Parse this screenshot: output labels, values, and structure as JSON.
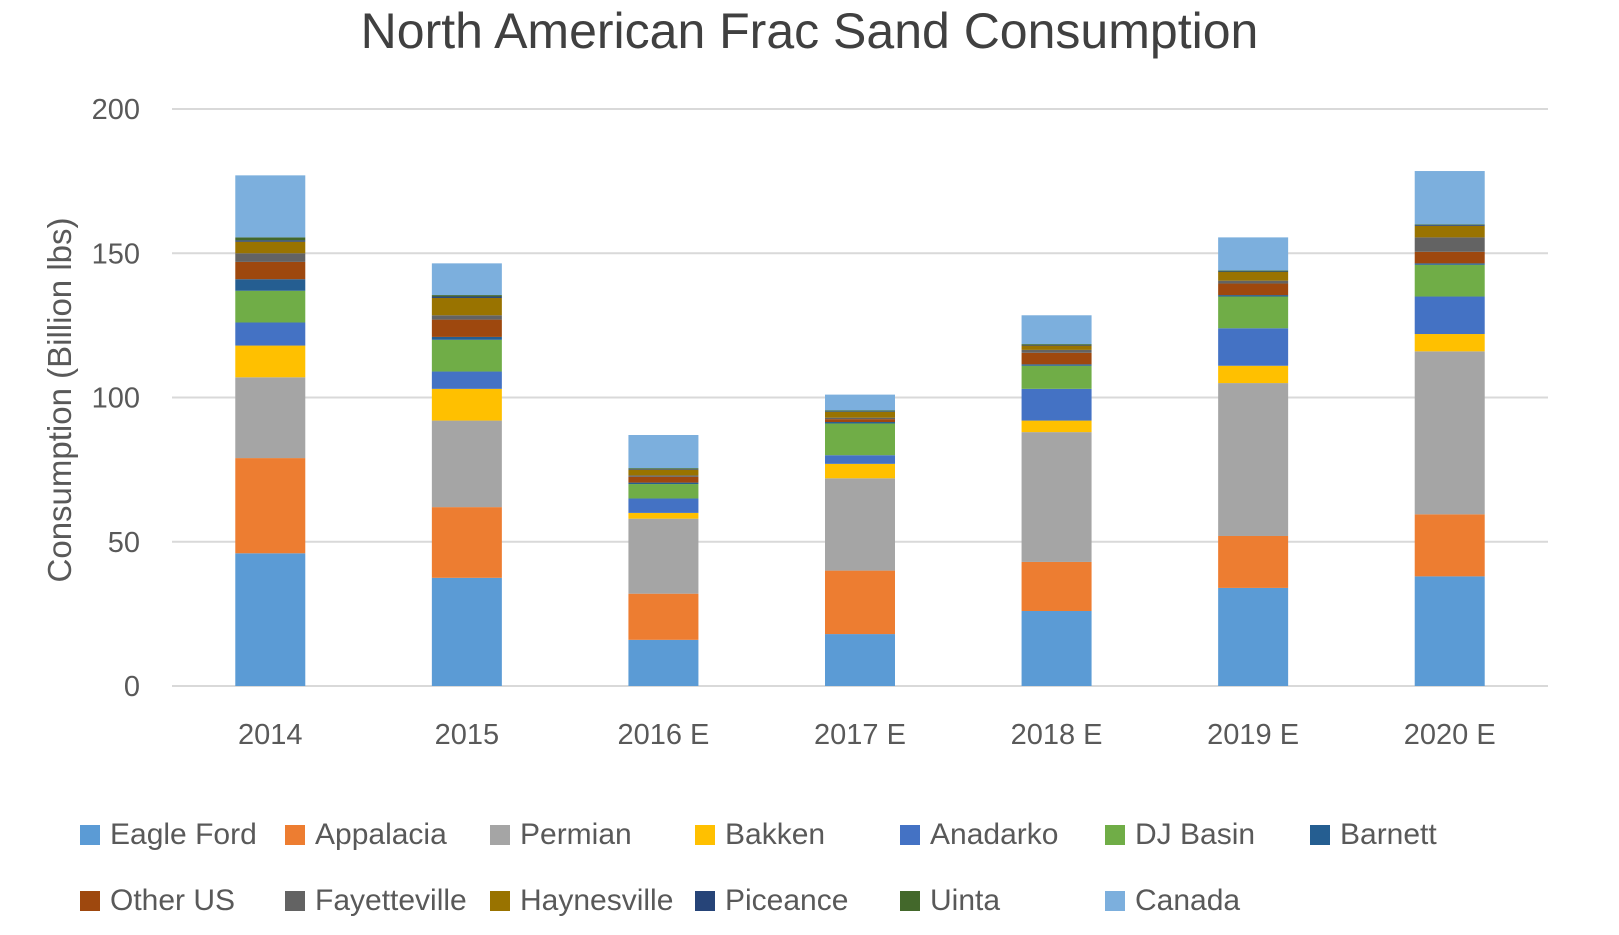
{
  "chart_data": {
    "type": "bar",
    "stacked": true,
    "title": "North American Frac Sand Consumption",
    "xlabel": "",
    "ylabel": "Consumption (Billion lbs)",
    "ylim": [
      0,
      200
    ],
    "yticks": [
      0,
      50,
      100,
      150,
      200
    ],
    "grid": true,
    "legend_position": "bottom",
    "categories": [
      "2014",
      "2015",
      "2016 E",
      "2017 E",
      "2018 E",
      "2019 E",
      "2020 E"
    ],
    "series": [
      {
        "name": "Eagle Ford",
        "color": "#5B9BD5",
        "values": [
          46,
          37.5,
          16,
          18,
          26,
          34,
          38
        ]
      },
      {
        "name": "Appalacia",
        "color": "#ED7D31",
        "values": [
          33,
          24.5,
          16,
          22,
          17,
          18,
          21.5
        ]
      },
      {
        "name": "Permian",
        "color": "#A5A5A5",
        "values": [
          28,
          30,
          26,
          32,
          45,
          53,
          56.5
        ]
      },
      {
        "name": "Bakken",
        "color": "#FFC000",
        "values": [
          11,
          11,
          2,
          5,
          4,
          6,
          6
        ]
      },
      {
        "name": "Anadarko",
        "color": "#4472C4",
        "values": [
          8,
          6,
          5,
          3,
          11,
          13,
          13
        ]
      },
      {
        "name": "DJ Basin",
        "color": "#70AD47",
        "values": [
          11,
          11,
          5,
          11,
          8,
          11,
          11
        ]
      },
      {
        "name": "Barnett",
        "color": "#255E91",
        "values": [
          4,
          1,
          0.5,
          0.5,
          0.5,
          0.5,
          0.5
        ]
      },
      {
        "name": "Other US",
        "color": "#9E480E",
        "values": [
          6,
          6,
          2,
          1,
          4,
          4,
          4
        ]
      },
      {
        "name": "Fayetteville",
        "color": "#636363",
        "values": [
          3,
          1.5,
          0.5,
          0.5,
          1,
          1,
          5
        ]
      },
      {
        "name": "Haynesville",
        "color": "#997300",
        "values": [
          4,
          6,
          2,
          2,
          1.5,
          3,
          4
        ]
      },
      {
        "name": "Piceance",
        "color": "#264478",
        "values": [
          0.5,
          0.5,
          0.2,
          0.2,
          0.2,
          0.2,
          0.3
        ]
      },
      {
        "name": "Uinta",
        "color": "#43682B",
        "values": [
          1,
          0.5,
          0.3,
          0.3,
          0.3,
          0.3,
          0.2
        ]
      },
      {
        "name": "Canada",
        "color": "#7CAFDD",
        "values": [
          21.5,
          11,
          11.5,
          5.5,
          10,
          11.5,
          18.5
        ]
      }
    ]
  }
}
